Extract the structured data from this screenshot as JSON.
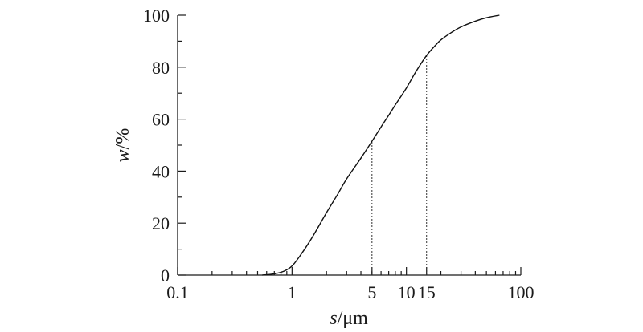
{
  "chart_data": {
    "type": "line",
    "title": "",
    "x_scale": "log",
    "xlim": [
      0.1,
      100
    ],
    "ylim": [
      0,
      100
    ],
    "xlabel_var": "s",
    "xlabel_unit": "/μm",
    "ylabel_var": "w",
    "ylabel_unit": "/%",
    "x_ticks": [
      {
        "value": 0.1,
        "label": "0.1"
      },
      {
        "value": 1,
        "label": "1"
      },
      {
        "value": 5,
        "label": "5"
      },
      {
        "value": 10,
        "label": "10"
      },
      {
        "value": 15,
        "label": "15"
      },
      {
        "value": 100,
        "label": "100"
      }
    ],
    "y_ticks": [
      {
        "value": 0,
        "label": "0"
      },
      {
        "value": 20,
        "label": "20"
      },
      {
        "value": 40,
        "label": "40"
      },
      {
        "value": 60,
        "label": "60"
      },
      {
        "value": 80,
        "label": "80"
      },
      {
        "value": 100,
        "label": "100"
      }
    ],
    "series": [
      {
        "x": [
          0.55,
          0.7,
          0.85,
          1.0,
          1.2,
          1.5,
          2.0,
          2.5,
          3.0,
          4.0,
          5.0,
          6.0,
          7.0,
          8.0,
          10.0,
          12.0,
          15.0,
          18.0,
          20.0,
          25.0,
          30.0,
          40.0,
          50.0,
          65.0
        ],
        "y": [
          0,
          0.5,
          1.5,
          3.5,
          8,
          14.5,
          24,
          31,
          37,
          45,
          51.5,
          57,
          61.5,
          65.5,
          72,
          78,
          84.5,
          88.5,
          90.5,
          93.5,
          95.5,
          97.7,
          99.0,
          100
        ]
      }
    ],
    "reference_lines": [
      {
        "x": 5,
        "y": 51.5
      },
      {
        "x": 15,
        "y": 84.5
      }
    ],
    "colors": {
      "line": "#111111",
      "axis": "#1a1a1a",
      "reference": "#333333"
    }
  }
}
